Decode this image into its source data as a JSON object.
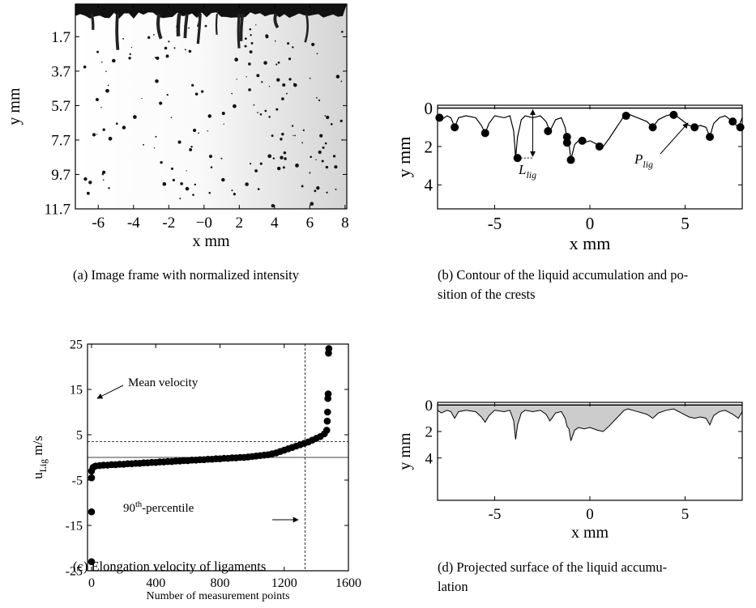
{
  "chart_data": [
    {
      "type": "image",
      "xlabel": "x mm",
      "ylabel": "y mm",
      "xlim": [
        -7.3,
        8.1
      ],
      "ylim": [
        11.7,
        -0.2
      ],
      "xticks": [
        -6,
        -4,
        -2,
        {
          "value": 0,
          "label": "−0"
        },
        2,
        4,
        6,
        8
      ],
      "yticks": [
        1.7,
        3.7,
        5.7,
        7.7,
        9.7,
        11.7
      ],
      "caption": [
        "(a) Image frame with normalized intensity"
      ]
    },
    {
      "type": "contour",
      "xlabel": "x mm",
      "ylabel": "y mm",
      "xlim": [
        -8,
        8
      ],
      "ylim": [
        5.25,
        -0.15
      ],
      "xticks": [
        -5,
        0,
        5
      ],
      "yticks": [
        0,
        2,
        4
      ],
      "contour": {
        "color": "#000",
        "x": [
          -8,
          -7.8,
          -7.5,
          -7.3,
          -7.1,
          -6.9,
          -6.5,
          -6,
          -5.7,
          -5.5,
          -5.3,
          -5,
          -4.5,
          -4.2,
          -4.0,
          -3.9,
          -3.8,
          -3.6,
          -3.4,
          -3,
          -2.6,
          -2.3,
          -2.1,
          -1.8,
          -1.5,
          -1.3,
          -1.2,
          -1.1,
          -1.0,
          -0.8,
          -0.6,
          -0.3,
          0,
          0.4,
          0.7,
          1,
          1.4,
          1.8,
          2,
          2.5,
          3,
          3.3,
          3.6,
          4,
          4.4,
          4.8,
          5.2,
          5.5,
          5.8,
          6.1,
          6.3,
          6.5,
          6.8,
          7.1,
          7.5,
          7.8,
          8
        ],
        "y": [
          0.4,
          0.6,
          0.4,
          0.5,
          1.0,
          0.5,
          0.4,
          0.5,
          0.9,
          1.3,
          0.8,
          0.4,
          0.5,
          0.4,
          1.2,
          2.6,
          1.5,
          0.6,
          0.4,
          0.5,
          0.4,
          0.7,
          1.2,
          0.6,
          0.5,
          1.0,
          1.6,
          1.8,
          2.7,
          1.9,
          1.7,
          1.8,
          1.7,
          1.9,
          2.0,
          1.6,
          1.0,
          0.4,
          0.3,
          0.5,
          0.7,
          1.0,
          0.6,
          0.4,
          0.3,
          0.6,
          0.9,
          1.0,
          0.9,
          1.0,
          1.5,
          0.8,
          0.5,
          0.4,
          0.7,
          1.0,
          0.5
        ]
      },
      "crests": {
        "color": "#000",
        "x": [
          -7.9,
          -7.1,
          -5.5,
          -3.8,
          -2.2,
          -1.2,
          -1.2,
          -1.0,
          -0.4,
          0.5,
          1.9,
          3.3,
          4.4,
          5.5,
          6.3,
          7.5,
          7.9
        ],
        "y": [
          0.5,
          1.0,
          1.3,
          2.6,
          1.2,
          1.5,
          1.8,
          2.7,
          1.7,
          2.0,
          0.4,
          1.0,
          0.35,
          1.0,
          1.5,
          0.7,
          1.0
        ]
      },
      "annotations": [
        {
          "text": "L",
          "sub": "lig"
        },
        {
          "text": "P",
          "sub": "lig"
        }
      ],
      "caption": [
        "(b) Contour of the liquid accumulation and po-",
        "sition of the crests"
      ]
    },
    {
      "type": "scatter",
      "xlabel": "Number of measurement points",
      "ylabel": {
        "text": "u",
        "sub": "Lig",
        "after": " m/s"
      },
      "xlim": [
        -25,
        1600
      ],
      "ylim": [
        -25,
        25
      ],
      "xticks": [
        0,
        400,
        800,
        1200,
        1600
      ],
      "yticks": [
        -25,
        -15,
        -5,
        5,
        15,
        25
      ],
      "color": "#000",
      "x": [
        0,
        0,
        0,
        0,
        10,
        25,
        50,
        75,
        100,
        125,
        150,
        175,
        200,
        225,
        250,
        275,
        300,
        325,
        350,
        375,
        400,
        425,
        450,
        475,
        500,
        525,
        550,
        575,
        600,
        625,
        650,
        675,
        700,
        725,
        750,
        775,
        800,
        825,
        850,
        875,
        900,
        925,
        950,
        975,
        1000,
        1025,
        1050,
        1075,
        1100,
        1125,
        1150,
        1175,
        1200,
        1225,
        1250,
        1275,
        1300,
        1325,
        1350,
        1375,
        1400,
        1425,
        1450,
        1465,
        1468,
        1470,
        1472,
        1474,
        1476,
        1478
      ],
      "y": [
        -23,
        -12,
        -4.5,
        -3,
        -2.2,
        -1.9,
        -1.8,
        -1.7,
        -1.7,
        -1.6,
        -1.6,
        -1.5,
        -1.5,
        -1.4,
        -1.4,
        -1.3,
        -1.3,
        -1.2,
        -1.2,
        -1.1,
        -1.1,
        -1.0,
        -1.0,
        -0.9,
        -0.9,
        -0.8,
        -0.8,
        -0.7,
        -0.7,
        -0.6,
        -0.6,
        -0.5,
        -0.5,
        -0.4,
        -0.4,
        -0.3,
        -0.3,
        -0.2,
        -0.2,
        -0.1,
        -0.1,
        0,
        0,
        0.1,
        0.2,
        0.3,
        0.4,
        0.5,
        0.6,
        0.8,
        1.0,
        1.3,
        1.6,
        1.9,
        2.2,
        2.5,
        2.8,
        3.1,
        3.4,
        3.8,
        4.2,
        4.6,
        5.2,
        6,
        8,
        10,
        13,
        14,
        23,
        24
      ],
      "hlines": [
        {
          "value": 3.5,
          "style": "dashed"
        },
        {
          "value": 0,
          "style": "solid"
        }
      ],
      "vlines": [
        {
          "value": 1330,
          "style": "dashed"
        }
      ],
      "annotations": [
        {
          "text": "Mean velocity"
        },
        {
          "text": "90",
          "sup": "th",
          "after": "-percentile"
        }
      ],
      "caption": [
        "(c) Elongation velocity of ligaments"
      ]
    },
    {
      "type": "area",
      "xlabel": "x mm",
      "ylabel": "y mm",
      "xlim": [
        -8,
        8
      ],
      "ylim": [
        7.2,
        -0.2
      ],
      "xticks": [
        -5,
        0,
        5
      ],
      "yticks": [
        0,
        2,
        4
      ],
      "color": "#cccccc",
      "x": [
        -8,
        -7.8,
        -7.5,
        -7.3,
        -7.1,
        -6.9,
        -6.5,
        -6,
        -5.7,
        -5.5,
        -5.3,
        -5,
        -4.5,
        -4.2,
        -4.0,
        -3.9,
        -3.8,
        -3.6,
        -3.4,
        -3,
        -2.6,
        -2.3,
        -2.1,
        -1.8,
        -1.5,
        -1.3,
        -1.2,
        -1.1,
        -1.0,
        -0.8,
        -0.6,
        -0.3,
        0,
        0.4,
        0.7,
        1,
        1.4,
        1.8,
        2,
        2.5,
        3,
        3.3,
        3.6,
        4,
        4.4,
        4.8,
        5.2,
        5.5,
        5.8,
        6.1,
        6.3,
        6.5,
        6.8,
        7.1,
        7.5,
        7.8,
        8
      ],
      "y": [
        0.4,
        0.6,
        0.4,
        0.5,
        1.0,
        0.5,
        0.4,
        0.5,
        0.9,
        1.3,
        0.8,
        0.4,
        0.5,
        0.4,
        1.2,
        2.6,
        1.5,
        0.6,
        0.4,
        0.5,
        0.4,
        0.7,
        1.2,
        0.6,
        0.5,
        1.0,
        1.6,
        1.8,
        2.7,
        1.9,
        1.7,
        1.8,
        1.7,
        1.9,
        2.0,
        1.6,
        1.0,
        0.4,
        0.3,
        0.5,
        0.7,
        1.0,
        0.6,
        0.4,
        0.3,
        0.6,
        0.9,
        1.0,
        0.9,
        1.0,
        1.5,
        0.8,
        0.5,
        0.4,
        0.7,
        1.0,
        0.5
      ],
      "caption": [
        "(d) Projected surface of the liquid accumu-",
        "lation"
      ]
    }
  ]
}
